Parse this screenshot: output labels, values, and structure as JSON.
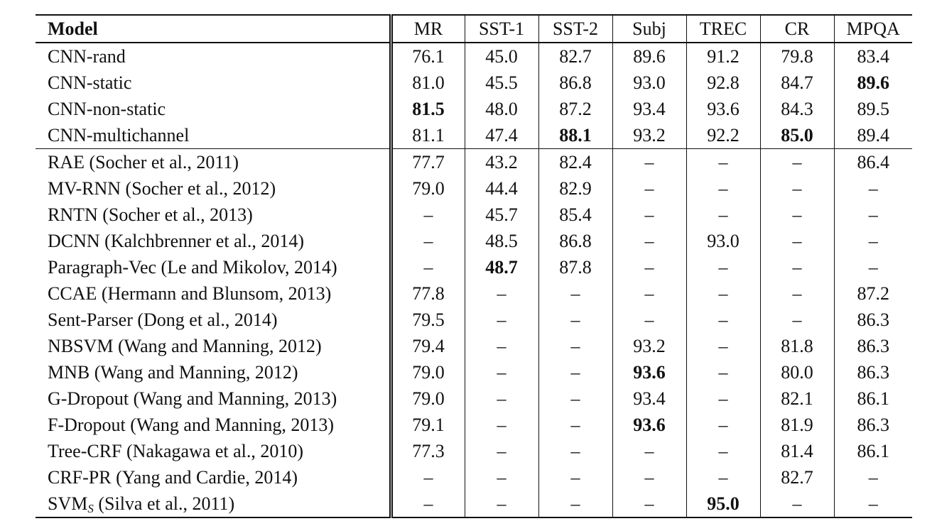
{
  "table": {
    "columns": [
      "Model",
      "MR",
      "SST-1",
      "SST-2",
      "Subj",
      "TREC",
      "CR",
      "MPQA"
    ],
    "groups": [
      [
        {
          "model": "CNN-rand",
          "cells": [
            {
              "v": "76.1"
            },
            {
              "v": "45.0"
            },
            {
              "v": "82.7"
            },
            {
              "v": "89.6"
            },
            {
              "v": "91.2"
            },
            {
              "v": "79.8"
            },
            {
              "v": "83.4"
            }
          ]
        },
        {
          "model": "CNN-static",
          "cells": [
            {
              "v": "81.0"
            },
            {
              "v": "45.5"
            },
            {
              "v": "86.8"
            },
            {
              "v": "93.0"
            },
            {
              "v": "92.8"
            },
            {
              "v": "84.7"
            },
            {
              "v": "89.6",
              "bold": true
            }
          ]
        },
        {
          "model": "CNN-non-static",
          "cells": [
            {
              "v": "81.5",
              "bold": true
            },
            {
              "v": "48.0"
            },
            {
              "v": "87.2"
            },
            {
              "v": "93.4"
            },
            {
              "v": "93.6"
            },
            {
              "v": "84.3"
            },
            {
              "v": "89.5"
            }
          ]
        },
        {
          "model": "CNN-multichannel",
          "cells": [
            {
              "v": "81.1"
            },
            {
              "v": "47.4"
            },
            {
              "v": "88.1",
              "bold": true
            },
            {
              "v": "93.2"
            },
            {
              "v": "92.2"
            },
            {
              "v": "85.0",
              "bold": true
            },
            {
              "v": "89.4"
            }
          ]
        }
      ],
      [
        {
          "model": "RAE (Socher et al., 2011)",
          "cells": [
            {
              "v": "77.7"
            },
            {
              "v": "43.2"
            },
            {
              "v": "82.4"
            },
            {
              "v": "–"
            },
            {
              "v": "–"
            },
            {
              "v": "–"
            },
            {
              "v": "86.4"
            }
          ]
        },
        {
          "model": "MV-RNN (Socher et al., 2012)",
          "cells": [
            {
              "v": "79.0"
            },
            {
              "v": "44.4"
            },
            {
              "v": "82.9"
            },
            {
              "v": "–"
            },
            {
              "v": "–"
            },
            {
              "v": "–"
            },
            {
              "v": "–"
            }
          ]
        },
        {
          "model": "RNTN (Socher et al., 2013)",
          "cells": [
            {
              "v": "–"
            },
            {
              "v": "45.7"
            },
            {
              "v": "85.4"
            },
            {
              "v": "–"
            },
            {
              "v": "–"
            },
            {
              "v": "–"
            },
            {
              "v": "–"
            }
          ]
        },
        {
          "model": "DCNN (Kalchbrenner et al., 2014)",
          "cells": [
            {
              "v": "–"
            },
            {
              "v": "48.5"
            },
            {
              "v": "86.8"
            },
            {
              "v": "–"
            },
            {
              "v": "93.0"
            },
            {
              "v": "–"
            },
            {
              "v": "–"
            }
          ]
        },
        {
          "model": "Paragraph-Vec (Le and Mikolov, 2014)",
          "cells": [
            {
              "v": "–"
            },
            {
              "v": "48.7",
              "bold": true
            },
            {
              "v": "87.8"
            },
            {
              "v": "–"
            },
            {
              "v": "–"
            },
            {
              "v": "–"
            },
            {
              "v": "–"
            }
          ]
        },
        {
          "model": "CCAE (Hermann and Blunsom, 2013)",
          "cells": [
            {
              "v": "77.8"
            },
            {
              "v": "–"
            },
            {
              "v": "–"
            },
            {
              "v": "–"
            },
            {
              "v": "–"
            },
            {
              "v": "–"
            },
            {
              "v": "87.2"
            }
          ]
        },
        {
          "model": "Sent-Parser (Dong et al., 2014)",
          "cells": [
            {
              "v": "79.5"
            },
            {
              "v": "–"
            },
            {
              "v": "–"
            },
            {
              "v": "–"
            },
            {
              "v": "–"
            },
            {
              "v": "–"
            },
            {
              "v": "86.3"
            }
          ]
        },
        {
          "model": "NBSVM (Wang and Manning, 2012)",
          "cells": [
            {
              "v": "79.4"
            },
            {
              "v": "–"
            },
            {
              "v": "–"
            },
            {
              "v": "93.2"
            },
            {
              "v": "–"
            },
            {
              "v": "81.8"
            },
            {
              "v": "86.3"
            }
          ]
        },
        {
          "model": "MNB (Wang and Manning, 2012)",
          "cells": [
            {
              "v": "79.0"
            },
            {
              "v": "–"
            },
            {
              "v": "–"
            },
            {
              "v": "93.6",
              "bold": true
            },
            {
              "v": "–"
            },
            {
              "v": "80.0"
            },
            {
              "v": "86.3"
            }
          ]
        },
        {
          "model": "G-Dropout (Wang and Manning, 2013)",
          "cells": [
            {
              "v": "79.0"
            },
            {
              "v": "–"
            },
            {
              "v": "–"
            },
            {
              "v": "93.4"
            },
            {
              "v": "–"
            },
            {
              "v": "82.1"
            },
            {
              "v": "86.1"
            }
          ]
        },
        {
          "model": "F-Dropout (Wang and Manning, 2013)",
          "cells": [
            {
              "v": "79.1"
            },
            {
              "v": "–"
            },
            {
              "v": "–"
            },
            {
              "v": "93.6",
              "bold": true
            },
            {
              "v": "–"
            },
            {
              "v": "81.9"
            },
            {
              "v": "86.3"
            }
          ]
        },
        {
          "model": "Tree-CRF (Nakagawa et al., 2010)",
          "cells": [
            {
              "v": "77.3"
            },
            {
              "v": "–"
            },
            {
              "v": "–"
            },
            {
              "v": "–"
            },
            {
              "v": "–"
            },
            {
              "v": "81.4"
            },
            {
              "v": "86.1"
            }
          ]
        },
        {
          "model": "CRF-PR (Yang and Cardie, 2014)",
          "cells": [
            {
              "v": "–"
            },
            {
              "v": "–"
            },
            {
              "v": "–"
            },
            {
              "v": "–"
            },
            {
              "v": "–"
            },
            {
              "v": "82.7"
            },
            {
              "v": "–"
            }
          ]
        },
        {
          "model": "SVM",
          "model_sub": "S",
          "model_suffix": " (Silva et al., 2011)",
          "cells": [
            {
              "v": "–"
            },
            {
              "v": "–"
            },
            {
              "v": "–"
            },
            {
              "v": "–"
            },
            {
              "v": "95.0",
              "bold": true
            },
            {
              "v": "–"
            },
            {
              "v": "–"
            }
          ]
        }
      ]
    ]
  }
}
